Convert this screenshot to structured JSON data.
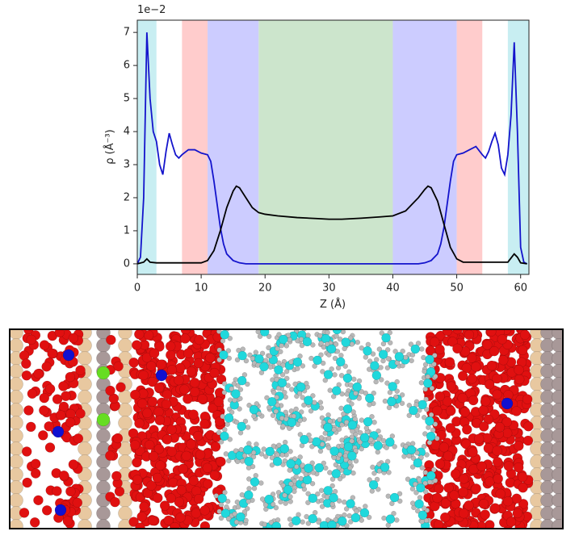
{
  "chart_data": {
    "type": "line",
    "y_offset_label": "1e−2",
    "xlabel": "Z (Å)",
    "ylabel": "ρ (Å⁻³)",
    "xlim": [
      0,
      61.3
    ],
    "ylim": [
      -0.32,
      7.37
    ],
    "xticks": [
      0,
      10,
      20,
      30,
      40,
      50,
      60
    ],
    "yticks": [
      0,
      1,
      2,
      3,
      4,
      5,
      6,
      7
    ],
    "regions": [
      {
        "start": 0,
        "end": 3,
        "color": "#c8eef2"
      },
      {
        "start": 7,
        "end": 11,
        "color": "#ffcccc"
      },
      {
        "start": 11,
        "end": 19,
        "color": "#ccccff"
      },
      {
        "start": 19,
        "end": 40,
        "color": "#cce5cc"
      },
      {
        "start": 40,
        "end": 50,
        "color": "#ccccff"
      },
      {
        "start": 50,
        "end": 54,
        "color": "#ffcccc"
      },
      {
        "start": 58,
        "end": 61.3,
        "color": "#c8eef2"
      }
    ],
    "series": [
      {
        "color": "#1414cc",
        "x": [
          0,
          0.5,
          1,
          1.5,
          2,
          2.5,
          3,
          3.5,
          4,
          4.5,
          5,
          5.5,
          6,
          6.5,
          7,
          8,
          9,
          10,
          11,
          11.5,
          12,
          12.5,
          13,
          13.5,
          14,
          15,
          16,
          17,
          44,
          45,
          46,
          47,
          47.5,
          48,
          48.5,
          49,
          49.5,
          50,
          51,
          52,
          53,
          54,
          54.5,
          55,
          55.5,
          56,
          56.5,
          57,
          57.5,
          58,
          58.5,
          59,
          59.5,
          60,
          60.5,
          61
        ],
        "values": [
          0,
          0.2,
          2,
          7.0,
          5,
          4.0,
          3.7,
          3.0,
          2.7,
          3.4,
          3.95,
          3.6,
          3.3,
          3.2,
          3.3,
          3.45,
          3.45,
          3.35,
          3.3,
          3.1,
          2.5,
          1.8,
          1.1,
          0.6,
          0.3,
          0.1,
          0.03,
          0,
          0,
          0.03,
          0.1,
          0.3,
          0.6,
          1.1,
          1.8,
          2.5,
          3.1,
          3.3,
          3.35,
          3.45,
          3.55,
          3.3,
          3.2,
          3.4,
          3.7,
          3.95,
          3.6,
          2.9,
          2.7,
          3.3,
          4.5,
          6.7,
          4.0,
          0.5,
          0.05,
          0
        ]
      },
      {
        "color": "#000000",
        "x": [
          0,
          1,
          1.5,
          2,
          3,
          10,
          11,
          12,
          13,
          14,
          15,
          15.5,
          16,
          17,
          18,
          19,
          20,
          22,
          25,
          28,
          30,
          32,
          35,
          38,
          40,
          42,
          43,
          44,
          45,
          45.5,
          46,
          47,
          48,
          49,
          50,
          51,
          58,
          59,
          59.5,
          60,
          61
        ],
        "values": [
          0,
          0.05,
          0.15,
          0.05,
          0.03,
          0.03,
          0.1,
          0.4,
          1.0,
          1.7,
          2.2,
          2.35,
          2.3,
          2.0,
          1.7,
          1.55,
          1.5,
          1.45,
          1.4,
          1.37,
          1.35,
          1.35,
          1.38,
          1.42,
          1.45,
          1.6,
          1.8,
          2.0,
          2.25,
          2.35,
          2.3,
          1.9,
          1.2,
          0.5,
          0.15,
          0.05,
          0.05,
          0.3,
          0.2,
          0.03,
          0
        ]
      }
    ]
  }
}
